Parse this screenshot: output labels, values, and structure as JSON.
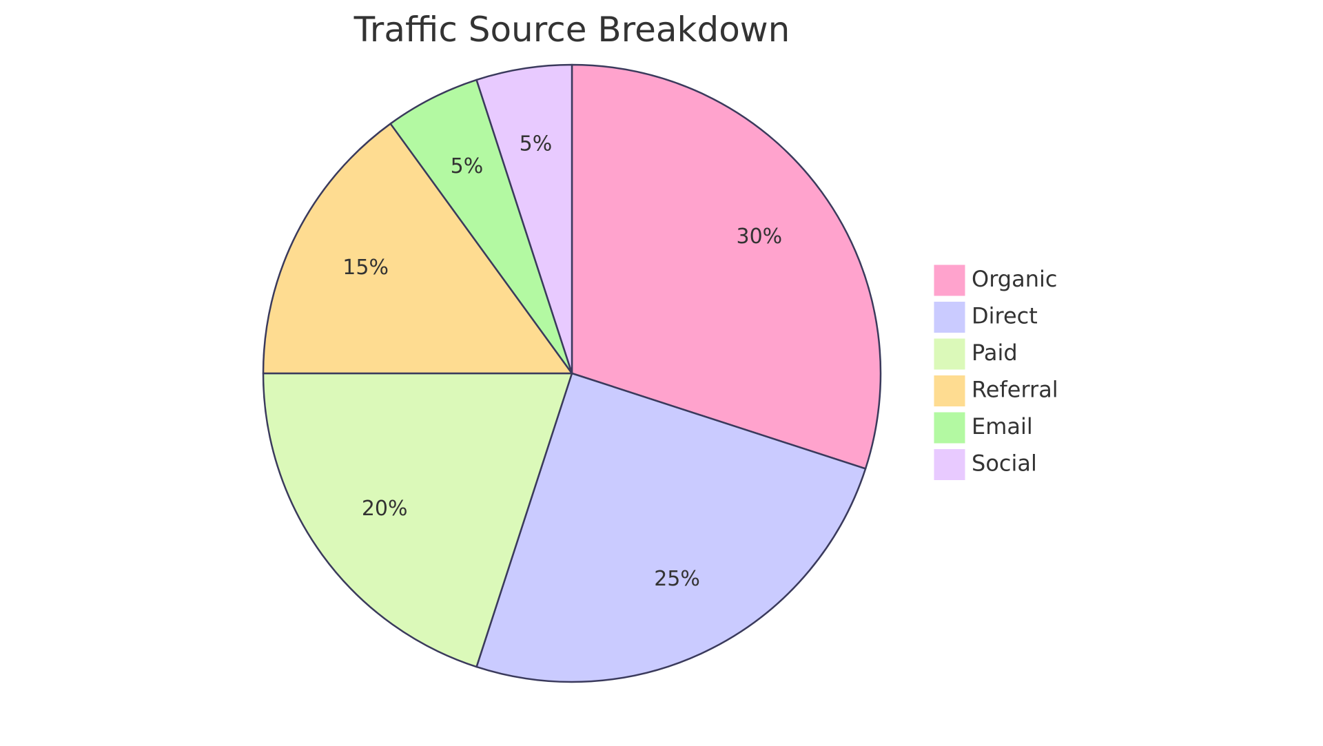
{
  "chart_data": {
    "type": "pie",
    "title": "Traffic Source Breakdown",
    "slices": [
      {
        "label": "Organic",
        "value": 30,
        "display": "30%",
        "color": "#FFA3CD"
      },
      {
        "label": "Direct",
        "value": 25,
        "display": "25%",
        "color": "#CACBFF"
      },
      {
        "label": "Paid",
        "value": 20,
        "display": "20%",
        "color": "#DBF9B9"
      },
      {
        "label": "Referral",
        "value": 15,
        "display": "15%",
        "color": "#FEDC91"
      },
      {
        "label": "Email",
        "value": 5,
        "display": "5%",
        "color": "#B3F9A2"
      },
      {
        "label": "Social",
        "value": 5,
        "display": "5%",
        "color": "#E8CAFF"
      }
    ],
    "legend_position": "right",
    "stroke_color": "#3A3A5C"
  }
}
